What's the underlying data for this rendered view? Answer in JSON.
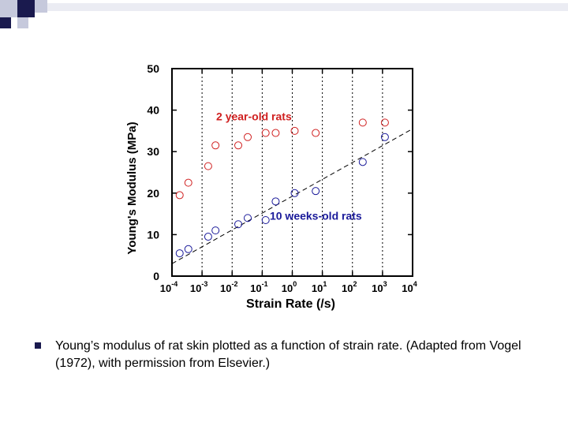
{
  "caption": {
    "text": "Young’s modulus of rat skin plotted as a function of strain rate. (Adapted from Vogel (1972), with permission from Elsevier.)"
  },
  "colors": {
    "series_old": "#d02020",
    "series_young": "#1a1a9a",
    "frame": "#000000",
    "grid": "#000000",
    "deco_dark": "#1a1a4e",
    "deco_light": "#c6c9dc",
    "bullet": "#1a1a4e"
  },
  "chart_data": {
    "type": "scatter",
    "title": "",
    "xlabel": "Strain Rate (/s)",
    "ylabel": "Young's Modulus (MPa)",
    "x_scale": "log",
    "xlim": [
      0.0001,
      10000
    ],
    "ylim": [
      0,
      50
    ],
    "x_ticks": [
      {
        "base": "10",
        "exp": "-4",
        "value": 0.0001
      },
      {
        "base": "10",
        "exp": "-3",
        "value": 0.001
      },
      {
        "base": "10",
        "exp": "-2",
        "value": 0.01
      },
      {
        "base": "10",
        "exp": "-1",
        "value": 0.1
      },
      {
        "base": "10",
        "exp": "0",
        "value": 1
      },
      {
        "base": "10",
        "exp": "1",
        "value": 10
      },
      {
        "base": "10",
        "exp": "2",
        "value": 100
      },
      {
        "base": "10",
        "exp": "3",
        "value": 1000
      },
      {
        "base": "10",
        "exp": "4",
        "value": 10000
      }
    ],
    "y_ticks": [
      "0",
      "10",
      "20",
      "30",
      "40",
      "50"
    ],
    "grid": "vertical-dotted",
    "series": [
      {
        "name": "2 year-old rats",
        "points": [
          [
            0.00018,
            19.5
          ],
          [
            0.00035,
            22.5
          ],
          [
            0.0016,
            26.5
          ],
          [
            0.0028,
            31.5
          ],
          [
            0.016,
            31.5
          ],
          [
            0.033,
            33.5
          ],
          [
            0.13,
            34.5
          ],
          [
            0.28,
            34.5
          ],
          [
            1.2,
            35
          ],
          [
            6,
            34.5
          ],
          [
            220,
            37
          ],
          [
            1200,
            37
          ]
        ]
      },
      {
        "name": "10 weeks-old rats",
        "points": [
          [
            0.00018,
            5.5
          ],
          [
            0.00035,
            6.5
          ],
          [
            0.0016,
            9.5
          ],
          [
            0.0028,
            11
          ],
          [
            0.016,
            12.5
          ],
          [
            0.033,
            14
          ],
          [
            0.13,
            13.5
          ],
          [
            0.28,
            18
          ],
          [
            1.2,
            20
          ],
          [
            6,
            20.5
          ],
          [
            220,
            27.5
          ],
          [
            1200,
            33.5
          ]
        ]
      }
    ],
    "trend_line": {
      "from": [
        0.0001,
        3
      ],
      "to": [
        10000,
        35.5
      ]
    },
    "annotations": [
      {
        "text": "2 year-old rats",
        "series": 0,
        "at": [
          0.033,
          38.5
        ]
      },
      {
        "text": "10 weeks-old rats",
        "series": 1,
        "at": [
          2,
          14.5
        ]
      }
    ]
  }
}
